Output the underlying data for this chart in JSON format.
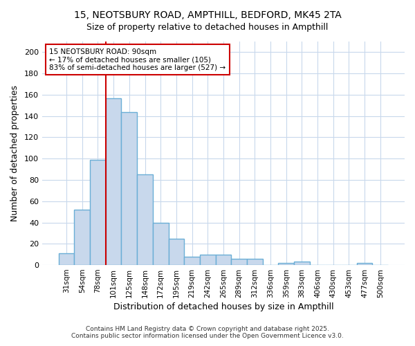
{
  "title_line1": "15, NEOTSBURY ROAD, AMPTHILL, BEDFORD, MK45 2TA",
  "title_line2": "Size of property relative to detached houses in Ampthill",
  "xlabel": "Distribution of detached houses by size in Ampthill",
  "ylabel": "Number of detached properties",
  "bar_labels": [
    "31sqm",
    "54sqm",
    "78sqm",
    "101sqm",
    "125sqm",
    "148sqm",
    "172sqm",
    "195sqm",
    "219sqm",
    "242sqm",
    "265sqm",
    "289sqm",
    "312sqm",
    "336sqm",
    "359sqm",
    "383sqm",
    "406sqm",
    "430sqm",
    "453sqm",
    "477sqm",
    "500sqm"
  ],
  "bar_values": [
    11,
    52,
    99,
    157,
    144,
    85,
    40,
    25,
    8,
    10,
    10,
    6,
    6,
    0,
    2,
    3,
    0,
    0,
    0,
    2,
    0
  ],
  "bar_color": "#c8d8ec",
  "bar_edgecolor": "#6aaed6",
  "bar_linewidth": 1.0,
  "vline_color": "#cc0000",
  "vline_linewidth": 1.5,
  "vline_position": 3.0,
  "annotation_title": "15 NEOTSBURY ROAD: 90sqm",
  "annotation_line1": "← 17% of detached houses are smaller (105)",
  "annotation_line2": "83% of semi-detached houses are larger (527) →",
  "annotation_box_color": "#cc0000",
  "annotation_bg_color": "white",
  "ylim": [
    0,
    210
  ],
  "yticks": [
    0,
    20,
    40,
    60,
    80,
    100,
    120,
    140,
    160,
    180,
    200
  ],
  "background_color": "#ffffff",
  "plot_bg_color": "#ffffff",
  "grid_color": "#c8d8ec",
  "footer_line1": "Contains HM Land Registry data © Crown copyright and database right 2025.",
  "footer_line2": "Contains public sector information licensed under the Open Government Licence v3.0.",
  "figsize": [
    6.0,
    5.0
  ],
  "dpi": 100
}
